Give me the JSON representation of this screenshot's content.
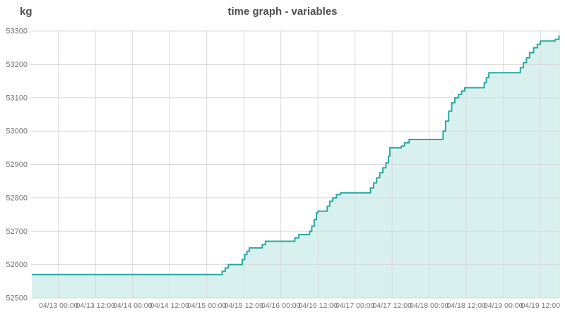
{
  "header": {
    "unit": "kg",
    "title": "time graph - variables"
  },
  "colors": {
    "line": "#2aa8a2",
    "fill": "#d8f1ee",
    "grid": "#d9d9d9",
    "axis_text": "#757575",
    "title_text": "#4f4f4f",
    "background": "#ffffff"
  },
  "chart_data": {
    "type": "area",
    "step": true,
    "title": "time graph - variables",
    "ylabel": "kg",
    "xlabel": "",
    "grid": true,
    "legend": false,
    "ylim": [
      52500,
      53300
    ],
    "y_ticks": [
      53300,
      53200,
      53100,
      53000,
      52900,
      52800,
      52700,
      52600,
      52500
    ],
    "x_unit_note": "t = hours since 04/13 00:00",
    "x_range": [
      -8.6,
      162.3
    ],
    "x_ticks": [
      {
        "t": 0,
        "label": "04/13 00:00"
      },
      {
        "t": 12,
        "label": "04/13 12:00"
      },
      {
        "t": 24,
        "label": "04/14 00:00"
      },
      {
        "t": 36,
        "label": "04/14 12:00"
      },
      {
        "t": 48,
        "label": "04/15 00:00"
      },
      {
        "t": 60,
        "label": "04/15 12:00"
      },
      {
        "t": 72,
        "label": "04/16 00:00"
      },
      {
        "t": 84,
        "label": "04/16 12:00"
      },
      {
        "t": 96,
        "label": "04/17 00:00"
      },
      {
        "t": 108,
        "label": "04/17 12:00"
      },
      {
        "t": 120,
        "label": "04/18 00:00"
      },
      {
        "t": 132,
        "label": "04/18 12:00"
      },
      {
        "t": 144,
        "label": "04/19 00:00"
      },
      {
        "t": 156,
        "label": "04/19 12:00"
      }
    ],
    "series": [
      {
        "name": "variables",
        "unit": "kg",
        "points": [
          [
            -8.6,
            52570
          ],
          [
            53.0,
            52580
          ],
          [
            54.0,
            52590
          ],
          [
            55.0,
            52600
          ],
          [
            59.5,
            52615
          ],
          [
            60.3,
            52630
          ],
          [
            61.0,
            52640
          ],
          [
            61.8,
            52650
          ],
          [
            66.0,
            52660
          ],
          [
            67.0,
            52670
          ],
          [
            76.5,
            52680
          ],
          [
            77.8,
            52690
          ],
          [
            81.3,
            52700
          ],
          [
            82.0,
            52715
          ],
          [
            82.8,
            52735
          ],
          [
            83.5,
            52755
          ],
          [
            84.0,
            52760
          ],
          [
            87.0,
            52775
          ],
          [
            87.8,
            52790
          ],
          [
            88.8,
            52800
          ],
          [
            90.0,
            52810
          ],
          [
            91.3,
            52815
          ],
          [
            101.0,
            52830
          ],
          [
            102.0,
            52845
          ],
          [
            103.0,
            52860
          ],
          [
            104.0,
            52875
          ],
          [
            105.0,
            52890
          ],
          [
            106.0,
            52905
          ],
          [
            106.8,
            52925
          ],
          [
            107.3,
            52950
          ],
          [
            111.0,
            52955
          ],
          [
            112.0,
            52965
          ],
          [
            113.5,
            52975
          ],
          [
            124.5,
            53000
          ],
          [
            125.3,
            53030
          ],
          [
            126.3,
            53060
          ],
          [
            127.3,
            53085
          ],
          [
            128.3,
            53100
          ],
          [
            129.5,
            53110
          ],
          [
            130.5,
            53120
          ],
          [
            131.5,
            53130
          ],
          [
            137.8,
            53145
          ],
          [
            138.5,
            53160
          ],
          [
            139.3,
            53175
          ],
          [
            149.5,
            53190
          ],
          [
            150.5,
            53205
          ],
          [
            151.5,
            53220
          ],
          [
            152.5,
            53235
          ],
          [
            153.8,
            53250
          ],
          [
            155.0,
            53260
          ],
          [
            156.0,
            53270
          ],
          [
            160.8,
            53275
          ],
          [
            162.0,
            53285
          ]
        ]
      }
    ]
  }
}
